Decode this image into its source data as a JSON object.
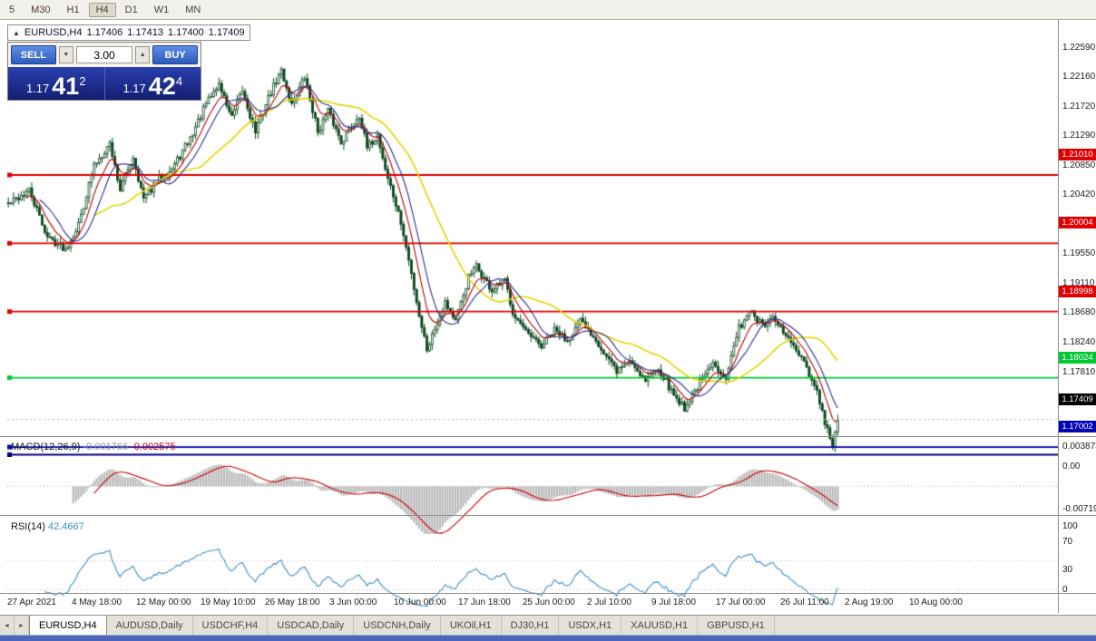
{
  "toolbar": {
    "timeframes": [
      "5",
      "M30",
      "H1",
      "H4",
      "D1",
      "W1",
      "MN"
    ],
    "active": "H4"
  },
  "icons": {
    "collapse": "▲",
    "spin_down": "▼",
    "spin_up": "▲",
    "tab_scroll_left": "◄",
    "tab_scroll_right": "►"
  },
  "chart_header": {
    "symbol": "EURUSD,H4",
    "open": "1.17406",
    "high": "1.17413",
    "low": "1.17400",
    "close": "1.17409"
  },
  "trade_panel": {
    "sell_label": "SELL",
    "buy_label": "BUY",
    "lot": "3.00",
    "sell_prefix": "1.17",
    "sell_big": "41",
    "sell_sup": "2",
    "buy_prefix": "1.17",
    "buy_big": "42",
    "buy_sup": "4"
  },
  "price_axis": {
    "ticks": [
      "1.22590",
      "1.22160",
      "1.21720",
      "1.21290",
      "1.20850",
      "1.20420",
      "1.19980",
      "1.19550",
      "1.19110",
      "1.18680",
      "1.18240",
      "1.17810",
      "1.17370"
    ]
  },
  "hlines": [
    {
      "price": 1.2101,
      "label": "1.21010",
      "color": "#e00000"
    },
    {
      "price": 1.20004,
      "label": "1.20004",
      "color": "#e00000"
    },
    {
      "price": 1.18998,
      "label": "1.18998",
      "color": "#e00000"
    },
    {
      "price": 1.18024,
      "label": "1.18024",
      "color": "#00c832"
    },
    {
      "price": 1.17002,
      "label": "1.17002",
      "color": "#0000b4"
    },
    {
      "price": 1.1689,
      "label": "",
      "color": "#000080"
    }
  ],
  "current_price": {
    "label": "1.17409",
    "price": 1.17409,
    "color": "#000000"
  },
  "macd": {
    "label": "MACD(12,26,9)",
    "main_value": "-0.001766",
    "signal_value": "-0.002575",
    "axis_labels": [
      "0.003873",
      "0.00",
      "-0.00719"
    ],
    "range_max": 0.003873,
    "range_min": -0.00719,
    "hist_color": "#b9b9b9",
    "signal_color": "#cc0000"
  },
  "rsi": {
    "label": "RSI(14)",
    "value": "42.4667",
    "axis_labels": [
      "100",
      "70",
      "30",
      "0"
    ],
    "levels": [
      70,
      30
    ],
    "color": "#3a8fc7"
  },
  "time_axis": {
    "labels": [
      "27 Apr 2021",
      "4 May 18:00",
      "12 May 00:00",
      "19 May 10:00",
      "26 May 18:00",
      "3 Jun 00:00",
      "10 Jun 00:00",
      "17 Jun 18:00",
      "25 Jun 00:00",
      "2 Jul 10:00",
      "9 Jul 18:00",
      "17 Jul 00:00",
      "26 Jul 11:00",
      "2 Aug 19:00",
      "10 Aug 00:00"
    ]
  },
  "tabs": {
    "items": [
      "EURUSD,H4",
      "AUDUSD,Daily",
      "USDCHF,H4",
      "USDCAD,Daily",
      "USDCNH,Daily",
      "UKOil,H1",
      "DJ30,H1",
      "USDX,H1",
      "XAUUSD,H1",
      "GBPUSD,H1"
    ],
    "active": "EURUSD,H4"
  },
  "chart_data": {
    "type": "candlestick",
    "symbol": "EURUSD",
    "timeframe": "H4",
    "bars": 320,
    "ylim": [
      1.1687,
      1.2292
    ],
    "last_close": 1.17409,
    "price_anchors": [
      [
        0,
        1.2058
      ],
      [
        8,
        1.2078
      ],
      [
        15,
        1.201
      ],
      [
        22,
        1.1992
      ],
      [
        27,
        1.2028
      ],
      [
        33,
        1.2115
      ],
      [
        39,
        1.2148
      ],
      [
        43,
        1.208
      ],
      [
        48,
        1.2128
      ],
      [
        52,
        1.2065
      ],
      [
        58,
        1.2095
      ],
      [
        63,
        1.211
      ],
      [
        70,
        1.2155
      ],
      [
        76,
        1.2205
      ],
      [
        81,
        1.2235
      ],
      [
        86,
        1.2185
      ],
      [
        90,
        1.2225
      ],
      [
        95,
        1.2165
      ],
      [
        100,
        1.2215
      ],
      [
        105,
        1.2255
      ],
      [
        109,
        1.2205
      ],
      [
        114,
        1.2245
      ],
      [
        119,
        1.2165
      ],
      [
        123,
        1.2195
      ],
      [
        128,
        1.215
      ],
      [
        135,
        1.219
      ],
      [
        138,
        1.214
      ],
      [
        142,
        1.216
      ],
      [
        145,
        1.211
      ],
      [
        151,
        1.203
      ],
      [
        154,
        1.1975
      ],
      [
        158,
        1.1895
      ],
      [
        161,
        1.1845
      ],
      [
        165,
        1.1885
      ],
      [
        168,
        1.1915
      ],
      [
        172,
        1.1885
      ],
      [
        177,
        1.195
      ],
      [
        180,
        1.1966
      ],
      [
        186,
        1.193
      ],
      [
        191,
        1.1945
      ],
      [
        194,
        1.19
      ],
      [
        199,
        1.1868
      ],
      [
        205,
        1.1848
      ],
      [
        210,
        1.1872
      ],
      [
        215,
        1.1858
      ],
      [
        220,
        1.1885
      ],
      [
        226,
        1.186
      ],
      [
        229,
        1.1838
      ],
      [
        234,
        1.1812
      ],
      [
        239,
        1.1828
      ],
      [
        245,
        1.18
      ],
      [
        250,
        1.1818
      ],
      [
        255,
        1.1782
      ],
      [
        260,
        1.1758
      ],
      [
        266,
        1.1795
      ],
      [
        271,
        1.1822
      ],
      [
        276,
        1.1805
      ],
      [
        281,
        1.1875
      ],
      [
        285,
        1.1902
      ],
      [
        290,
        1.1878
      ],
      [
        294,
        1.1888
      ],
      [
        298,
        1.187
      ],
      [
        302,
        1.1848
      ],
      [
        307,
        1.1815
      ],
      [
        311,
        1.178
      ],
      [
        314,
        1.1735
      ],
      [
        317,
        1.1703
      ],
      [
        319,
        1.1741
      ]
    ],
    "up_color": "#ffffff",
    "down_color": "#0d4a21",
    "outline_color": "#0d4a21",
    "overlays": [
      {
        "name": "ma-slow",
        "type": "sma",
        "period": 34,
        "color": "#e8d200"
      },
      {
        "name": "ma-fast",
        "type": "ema",
        "period": 8,
        "color": "#b80000"
      },
      {
        "name": "ma-mid",
        "type": "sma",
        "period": 13,
        "color": "#2b2b9b"
      }
    ],
    "indicators": [
      {
        "name": "MACD",
        "params": [
          12,
          26,
          9
        ]
      },
      {
        "name": "RSI",
        "params": [
          14
        ]
      }
    ]
  }
}
